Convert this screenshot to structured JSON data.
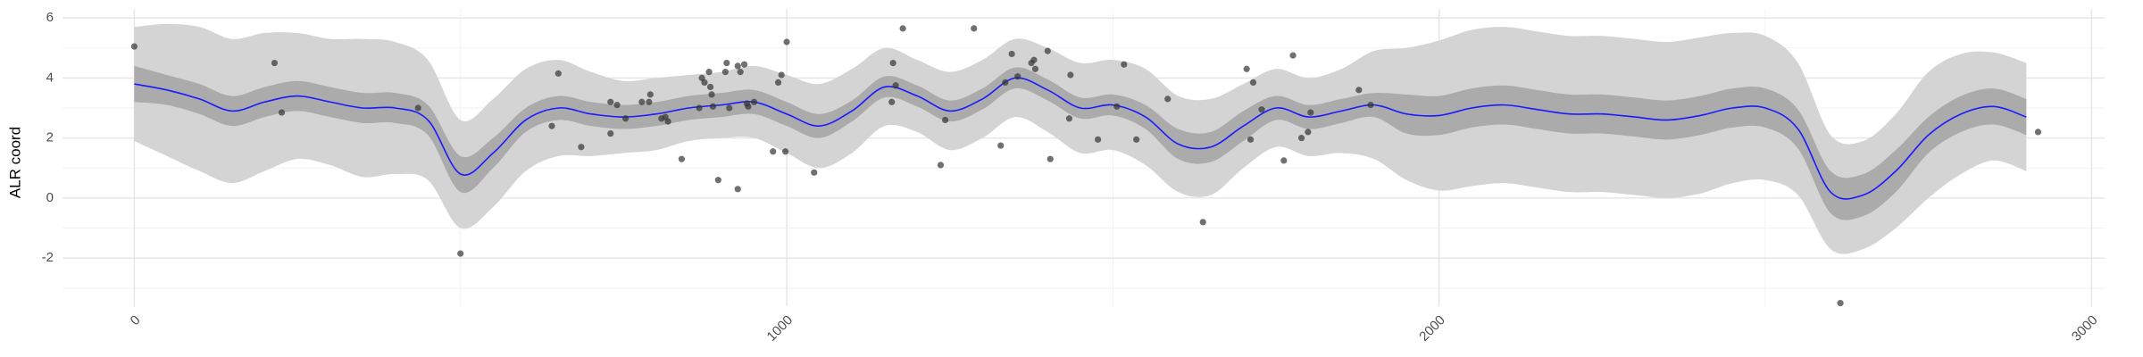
{
  "chart_data": {
    "type": "band-line",
    "y_label": "ALR coord",
    "xlim": [
      -110,
      3020
    ],
    "ylim": [
      -3.6,
      6.3
    ],
    "xticks": [
      0,
      1000,
      2000,
      3000
    ],
    "x_minor_ticks": [
      500,
      1500,
      2500
    ],
    "yticks": [
      -2,
      0,
      2,
      4,
      6
    ],
    "y_minor_ticks": [
      -3,
      -1,
      1,
      3,
      5
    ],
    "grid": true,
    "x": [
      0,
      50,
      100,
      150,
      200,
      250,
      300,
      350,
      400,
      450,
      500,
      550,
      600,
      650,
      700,
      750,
      800,
      850,
      900,
      950,
      1000,
      1050,
      1100,
      1150,
      1200,
      1250,
      1300,
      1350,
      1400,
      1450,
      1500,
      1550,
      1600,
      1650,
      1700,
      1750,
      1800,
      1850,
      1900,
      1950,
      2000,
      2050,
      2100,
      2150,
      2200,
      2250,
      2300,
      2350,
      2400,
      2450,
      2500,
      2550,
      2600,
      2650,
      2700,
      2750,
      2800,
      2850,
      2900
    ],
    "bands": [
      {
        "color": "#d4d4d4",
        "lower": [
          1.9,
          1.4,
          0.9,
          0.5,
          0.9,
          1.3,
          1.1,
          0.7,
          0.8,
          0.6,
          -1.0,
          -0.3,
          0.9,
          1.4,
          1.4,
          1.5,
          1.6,
          1.9,
          2.0,
          2.0,
          1.5,
          1.0,
          1.5,
          2.4,
          2.2,
          1.6,
          2.0,
          2.7,
          2.2,
          1.5,
          1.6,
          1.1,
          0.2,
          0.1,
          1.0,
          1.7,
          1.4,
          1.5,
          1.3,
          0.6,
          0.25,
          0.4,
          0.5,
          0.35,
          0.2,
          0.2,
          0.1,
          0.0,
          0.15,
          0.5,
          0.6,
          0.1,
          -1.7,
          -1.7,
          -1.0,
          0.0,
          0.8,
          1.25,
          0.9
        ],
        "upper": [
          5.7,
          5.8,
          5.7,
          5.3,
          5.5,
          5.5,
          5.3,
          5.3,
          5.2,
          4.6,
          2.6,
          3.3,
          4.3,
          4.6,
          4.2,
          3.9,
          4.0,
          4.1,
          4.2,
          4.4,
          4.1,
          3.8,
          4.3,
          5.0,
          4.6,
          4.2,
          4.6,
          5.3,
          5.0,
          4.5,
          4.6,
          4.3,
          3.4,
          3.3,
          3.8,
          4.3,
          4.0,
          4.3,
          4.9,
          5.0,
          5.25,
          5.6,
          5.7,
          5.55,
          5.4,
          5.4,
          5.3,
          5.2,
          5.35,
          5.5,
          5.4,
          4.5,
          2.1,
          1.9,
          2.8,
          4.2,
          4.8,
          4.85,
          4.5
        ]
      },
      {
        "color": "#ababab",
        "lower": [
          3.2,
          3.1,
          2.8,
          2.4,
          2.7,
          2.9,
          2.7,
          2.5,
          2.5,
          2.1,
          0.2,
          1.0,
          2.2,
          2.6,
          2.4,
          2.3,
          2.4,
          2.6,
          2.7,
          2.8,
          2.4,
          2.0,
          2.55,
          3.35,
          3.05,
          2.55,
          2.95,
          3.65,
          3.25,
          2.65,
          2.75,
          2.3,
          1.3,
          1.2,
          1.9,
          2.6,
          2.3,
          2.5,
          2.7,
          2.15,
          2.1,
          2.35,
          2.45,
          2.3,
          2.15,
          2.15,
          2.05,
          1.95,
          2.1,
          2.35,
          2.35,
          1.65,
          -0.5,
          -0.6,
          0.2,
          1.5,
          2.2,
          2.45,
          2.1
        ],
        "upper": [
          4.4,
          4.1,
          3.8,
          3.4,
          3.7,
          3.9,
          3.7,
          3.5,
          3.5,
          3.1,
          1.4,
          2.0,
          3.0,
          3.4,
          3.2,
          3.1,
          3.2,
          3.4,
          3.5,
          3.6,
          3.2,
          2.8,
          3.25,
          4.05,
          3.75,
          3.25,
          3.65,
          4.35,
          3.95,
          3.35,
          3.45,
          3.1,
          2.3,
          2.2,
          2.9,
          3.4,
          3.1,
          3.3,
          3.5,
          3.45,
          3.4,
          3.65,
          3.75,
          3.6,
          3.45,
          3.45,
          3.35,
          3.25,
          3.4,
          3.65,
          3.65,
          2.95,
          0.9,
          0.8,
          1.6,
          2.7,
          3.4,
          3.65,
          3.3
        ]
      }
    ],
    "line_color": "#1a1aff",
    "mean": [
      3.8,
      3.6,
      3.3,
      2.9,
      3.2,
      3.4,
      3.2,
      3.0,
      3.0,
      2.6,
      0.8,
      1.5,
      2.6,
      3.0,
      2.8,
      2.7,
      2.8,
      3.0,
      3.1,
      3.2,
      2.8,
      2.4,
      2.9,
      3.7,
      3.4,
      2.9,
      3.3,
      4.0,
      3.6,
      3.0,
      3.1,
      2.7,
      1.8,
      1.7,
      2.4,
      3.0,
      2.7,
      2.9,
      3.1,
      2.8,
      2.75,
      3.0,
      3.1,
      2.95,
      2.8,
      2.8,
      2.7,
      2.6,
      2.75,
      3.0,
      3.0,
      2.3,
      0.2,
      0.1,
      0.9,
      2.1,
      2.8,
      3.05,
      2.7
    ],
    "point_color": "#333333",
    "points": {
      "x": [
        0,
        215,
        226,
        435,
        500,
        640,
        650,
        685,
        730,
        730,
        740,
        753,
        778,
        789,
        791,
        808,
        814,
        818,
        839,
        866,
        870,
        874,
        881,
        883,
        885,
        887,
        895,
        906,
        908,
        912,
        925,
        925,
        929,
        935,
        939,
        941,
        950,
        979,
        987,
        992,
        998,
        1000,
        1042,
        1161,
        1163,
        1167,
        1178,
        1236,
        1243,
        1287,
        1328,
        1335,
        1345,
        1354,
        1375,
        1379,
        1381,
        1400,
        1404,
        1435,
        1433,
        1477,
        1506,
        1517,
        1536,
        1584,
        1638,
        1705,
        1711,
        1715,
        1728,
        1762,
        1776,
        1789,
        1799,
        1803,
        1877,
        1895,
        2615,
        2918
      ],
      "y": [
        5.05,
        4.5,
        2.85,
        3.0,
        -1.85,
        2.4,
        4.15,
        1.7,
        2.15,
        3.2,
        3.1,
        2.65,
        3.2,
        3.2,
        3.45,
        2.65,
        2.7,
        2.55,
        1.3,
        3.0,
        4.0,
        3.85,
        4.2,
        3.7,
        3.45,
        3.05,
        0.6,
        4.2,
        4.5,
        3.0,
        0.3,
        4.4,
        4.2,
        4.45,
        3.15,
        3.05,
        3.2,
        1.55,
        3.85,
        4.1,
        1.55,
        5.2,
        0.85,
        3.2,
        4.5,
        3.75,
        5.65,
        1.1,
        2.6,
        5.65,
        1.75,
        3.85,
        4.8,
        4.05,
        4.5,
        4.6,
        4.3,
        4.9,
        1.3,
        4.1,
        2.65,
        1.95,
        3.05,
        4.45,
        1.95,
        3.3,
        -0.8,
        4.3,
        1.95,
        3.85,
        2.95,
        1.25,
        4.75,
        2.0,
        2.2,
        2.85,
        3.6,
        3.1,
        -3.5,
        2.2
      ]
    }
  }
}
